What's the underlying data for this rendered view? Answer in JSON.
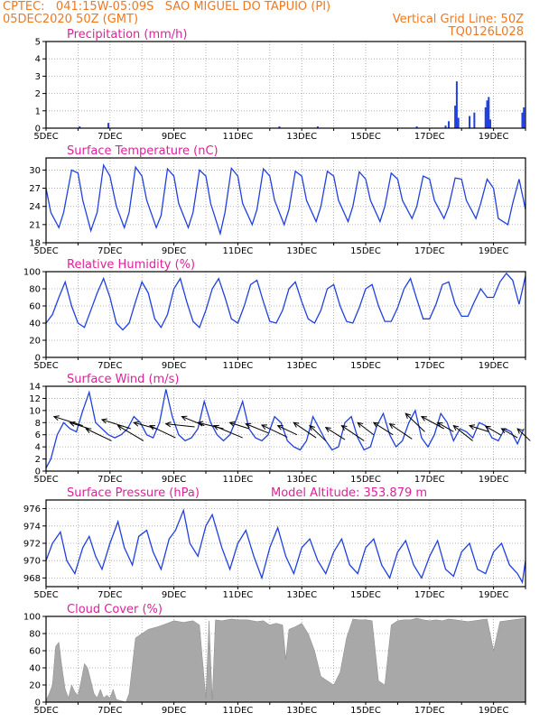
{
  "header": {
    "left_line1": "CPTEC:   041:15W-05:09S   SAO MIGUEL DO TAPUIO (PI)",
    "left_line2": "05DEC2020 50Z (GMT)",
    "right_line2": "Vertical Grid Line: 50Z",
    "right_line3": "TQ0126L028"
  },
  "colors": {
    "header": "#f07820",
    "title": "#e0209a",
    "line": "#2040e0",
    "cloud_fill": "#a8a8a8",
    "grid": "#a0a0a0"
  },
  "x_axis": {
    "days": [
      5,
      6,
      7,
      8,
      9,
      10,
      11,
      12,
      13,
      14,
      15,
      16,
      17,
      18,
      19,
      20
    ],
    "tick_labels": [
      "5DEC",
      "7DEC",
      "9DEC",
      "11DEC",
      "13DEC",
      "15DEC",
      "17DEC",
      "19DEC"
    ]
  },
  "chart_data": [
    {
      "type": "bar",
      "title": "Precipitation (mm/h)",
      "ylim": [
        0,
        5
      ],
      "yticks": [
        "0",
        "1",
        "2",
        "3",
        "4",
        "5"
      ],
      "x_unit": "day of December 2020",
      "x": [
        6.05,
        6.95,
        12.3,
        13.5,
        16.6,
        17.5,
        17.6,
        17.8,
        17.85,
        17.9,
        18.25,
        18.4,
        18.75,
        18.8,
        18.85,
        18.9,
        19.9,
        19.95
      ],
      "values": [
        0.1,
        0.3,
        0.1,
        0.1,
        0.1,
        0.15,
        0.4,
        1.3,
        2.7,
        0.6,
        0.7,
        0.9,
        1.2,
        1.6,
        1.8,
        0.5,
        0.9,
        1.2
      ]
    },
    {
      "type": "line",
      "title": "Surface Temperature (nC)",
      "ylim": [
        18,
        32
      ],
      "yticks": [
        "18",
        "21",
        "24",
        "27",
        "30"
      ],
      "x_unit": "day of December 2020",
      "x": [
        5.0,
        5.15,
        5.4,
        5.55,
        5.8,
        6.0,
        6.15,
        6.4,
        6.6,
        6.8,
        7.0,
        7.2,
        7.45,
        7.6,
        7.8,
        8.0,
        8.15,
        8.45,
        8.6,
        8.8,
        9.0,
        9.15,
        9.45,
        9.6,
        9.8,
        10.0,
        10.15,
        10.45,
        10.6,
        10.8,
        11.0,
        11.15,
        11.45,
        11.6,
        11.8,
        12.0,
        12.15,
        12.45,
        12.6,
        12.8,
        13.0,
        13.15,
        13.45,
        13.6,
        13.8,
        14.0,
        14.15,
        14.45,
        14.6,
        14.8,
        15.0,
        15.15,
        15.45,
        15.6,
        15.8,
        16.0,
        16.15,
        16.45,
        16.6,
        16.8,
        17.0,
        17.15,
        17.45,
        17.6,
        17.8,
        18.0,
        18.15,
        18.45,
        18.6,
        18.8,
        19.0,
        19.15,
        19.45,
        19.6,
        19.8,
        20.0
      ],
      "values": [
        27,
        23,
        20.5,
        23,
        30,
        29.5,
        25,
        20,
        23,
        30.8,
        29,
        24,
        20.5,
        23,
        30.5,
        29,
        25,
        20.5,
        22.5,
        30.2,
        29,
        24.5,
        20.5,
        23,
        30,
        29,
        24.5,
        19.5,
        23,
        30.3,
        29,
        24.5,
        21,
        23.5,
        30.2,
        29,
        25,
        21,
        23.5,
        29.8,
        29,
        25,
        21.5,
        24,
        29.8,
        29,
        25,
        21.5,
        24,
        29.7,
        28.5,
        25,
        21.5,
        24,
        29.5,
        28.5,
        25,
        22,
        24,
        29,
        28.5,
        25,
        22,
        24,
        28.7,
        28.5,
        25,
        22,
        24.5,
        28.5,
        27,
        22,
        21,
        24.5,
        28.5,
        23.5
      ]
    },
    {
      "type": "line",
      "title": "Relative Humidity (%)",
      "ylim": [
        0,
        100
      ],
      "yticks": [
        "0",
        "20",
        "40",
        "60",
        "80",
        "100"
      ],
      "x_unit": "day of December 2020",
      "x": [
        5.0,
        5.2,
        5.4,
        5.6,
        5.8,
        6.0,
        6.2,
        6.4,
        6.6,
        6.8,
        7.0,
        7.2,
        7.4,
        7.6,
        7.8,
        8.0,
        8.2,
        8.4,
        8.6,
        8.8,
        9.0,
        9.2,
        9.4,
        9.6,
        9.8,
        10.0,
        10.2,
        10.4,
        10.6,
        10.8,
        11.0,
        11.2,
        11.4,
        11.6,
        11.8,
        12.0,
        12.2,
        12.4,
        12.6,
        12.8,
        13.0,
        13.2,
        13.4,
        13.6,
        13.8,
        14.0,
        14.2,
        14.4,
        14.6,
        14.8,
        15.0,
        15.2,
        15.4,
        15.6,
        15.8,
        16.0,
        16.2,
        16.4,
        16.6,
        16.8,
        17.0,
        17.2,
        17.4,
        17.6,
        17.8,
        18.0,
        18.2,
        18.4,
        18.6,
        18.8,
        19.0,
        19.2,
        19.4,
        19.6,
        19.8,
        20.0
      ],
      "values": [
        40,
        50,
        70,
        88,
        60,
        40,
        35,
        55,
        75,
        92,
        70,
        40,
        32,
        40,
        65,
        88,
        75,
        45,
        35,
        50,
        80,
        92,
        65,
        42,
        35,
        55,
        80,
        92,
        70,
        45,
        40,
        60,
        85,
        90,
        65,
        42,
        40,
        55,
        80,
        88,
        65,
        45,
        40,
        55,
        80,
        85,
        60,
        42,
        40,
        58,
        80,
        85,
        60,
        42,
        42,
        58,
        80,
        92,
        68,
        45,
        45,
        62,
        85,
        88,
        62,
        48,
        48,
        65,
        80,
        70,
        70,
        88,
        98,
        90,
        62,
        95
      ]
    },
    {
      "type": "line",
      "title": "Surface Wind (m/s)",
      "ylim": [
        0,
        14
      ],
      "yticks": [
        "0",
        "2",
        "4",
        "6",
        "8",
        "10",
        "12",
        "14"
      ],
      "x_unit": "day of December 2020",
      "x": [
        5.0,
        5.15,
        5.35,
        5.55,
        5.75,
        5.95,
        6.15,
        6.35,
        6.55,
        6.75,
        6.95,
        7.15,
        7.35,
        7.55,
        7.75,
        7.95,
        8.15,
        8.35,
        8.55,
        8.75,
        8.95,
        9.15,
        9.35,
        9.55,
        9.75,
        9.95,
        10.15,
        10.35,
        10.55,
        10.75,
        10.95,
        11.15,
        11.35,
        11.55,
        11.75,
        11.95,
        12.15,
        12.35,
        12.55,
        12.75,
        12.95,
        13.15,
        13.35,
        13.55,
        13.75,
        13.95,
        14.15,
        14.35,
        14.55,
        14.75,
        14.95,
        15.15,
        15.35,
        15.55,
        15.75,
        15.95,
        16.15,
        16.35,
        16.55,
        16.75,
        16.95,
        17.15,
        17.35,
        17.55,
        17.75,
        17.95,
        18.15,
        18.35,
        18.55,
        18.75,
        18.95,
        19.15,
        19.35,
        19.55,
        19.75,
        19.95
      ],
      "values": [
        0.5,
        2,
        6,
        8,
        7,
        6.5,
        10,
        13,
        8,
        7,
        6,
        5.5,
        6,
        7,
        9,
        8,
        6,
        5.5,
        8,
        13.5,
        9,
        6,
        5,
        5.5,
        7,
        11.5,
        8,
        6,
        5,
        6,
        8.5,
        11.5,
        7,
        5.5,
        5,
        6,
        9,
        8,
        5,
        4,
        3.5,
        5,
        9,
        7,
        5,
        3.5,
        4,
        8,
        9,
        5.5,
        3.5,
        4,
        7.5,
        9.5,
        6,
        4,
        5,
        8,
        10,
        5.5,
        4,
        6,
        9.5,
        8,
        5,
        7,
        6.5,
        5.5,
        8,
        7.5,
        5.5,
        5,
        7,
        6.5,
        4.5,
        7
      ]
    },
    {
      "type": "line",
      "title": "Surface Pressure (hPa)",
      "annotation": "Model Altitude: 353.879 m",
      "ylim": [
        967,
        977
      ],
      "yticks": [
        "968",
        "970",
        "972",
        "974",
        "976"
      ],
      "x_unit": "day of December 2020",
      "x": [
        5.0,
        5.2,
        5.45,
        5.65,
        5.9,
        6.15,
        6.35,
        6.55,
        6.75,
        7.0,
        7.25,
        7.45,
        7.7,
        7.9,
        8.15,
        8.35,
        8.6,
        8.85,
        9.05,
        9.3,
        9.5,
        9.75,
        10.0,
        10.2,
        10.5,
        10.75,
        11.0,
        11.25,
        11.5,
        11.75,
        12.0,
        12.25,
        12.5,
        12.75,
        13.0,
        13.25,
        13.5,
        13.75,
        14.0,
        14.25,
        14.5,
        14.75,
        15.0,
        15.25,
        15.5,
        15.75,
        16.0,
        16.25,
        16.5,
        16.75,
        17.0,
        17.25,
        17.5,
        17.75,
        18.0,
        18.25,
        18.5,
        18.75,
        19.0,
        19.25,
        19.5,
        19.75,
        19.9,
        20.0
      ],
      "values": [
        970,
        972,
        973.3,
        970,
        968.5,
        971.5,
        972.8,
        970.5,
        969,
        972,
        974.5,
        971.5,
        969.5,
        972.8,
        973.5,
        971,
        969,
        972.5,
        973.5,
        975.8,
        972,
        970.5,
        974,
        975.3,
        971.5,
        969,
        972,
        973.5,
        970.5,
        968,
        971.5,
        973.8,
        970.5,
        968.5,
        971.5,
        972.5,
        970,
        968.5,
        971,
        972.5,
        969.5,
        968.5,
        971.5,
        972.5,
        969.5,
        968,
        971,
        972.3,
        969.5,
        968,
        970.5,
        972.3,
        969,
        968.2,
        971,
        972,
        969,
        968.5,
        971,
        972,
        969.5,
        968.5,
        967.5,
        970
      ]
    },
    {
      "type": "area",
      "title": "Cloud Cover (%)",
      "ylim": [
        0,
        100
      ],
      "yticks": [
        "0",
        "20",
        "40",
        "60",
        "80",
        "100"
      ],
      "x_unit": "day of December 2020",
      "x": [
        5.0,
        5.1,
        5.2,
        5.3,
        5.4,
        5.5,
        5.6,
        5.7,
        5.8,
        5.9,
        6.0,
        6.1,
        6.2,
        6.3,
        6.4,
        6.5,
        6.6,
        6.7,
        6.8,
        6.9,
        7.0,
        7.1,
        7.2,
        7.3,
        7.4,
        7.5,
        7.6,
        7.8,
        8.0,
        8.2,
        8.5,
        8.8,
        9.0,
        9.3,
        9.6,
        9.8,
        10.0,
        10.1,
        10.2,
        10.3,
        10.5,
        10.8,
        11.0,
        11.3,
        11.6,
        11.8,
        12.0,
        12.2,
        12.4,
        12.5,
        12.6,
        12.8,
        13.0,
        13.2,
        13.4,
        13.6,
        13.8,
        14.0,
        14.2,
        14.4,
        14.6,
        14.8,
        15.0,
        15.2,
        15.4,
        15.6,
        15.8,
        16.0,
        16.2,
        16.4,
        16.6,
        16.8,
        17.0,
        17.2,
        17.4,
        17.6,
        17.8,
        18.0,
        18.2,
        18.4,
        18.6,
        18.8,
        19.0,
        19.2,
        19.4,
        19.6,
        19.8,
        20.0
      ],
      "values": [
        2,
        10,
        20,
        65,
        70,
        40,
        15,
        5,
        20,
        12,
        8,
        25,
        45,
        40,
        25,
        10,
        5,
        15,
        5,
        8,
        5,
        15,
        3,
        2,
        1,
        0,
        10,
        75,
        80,
        85,
        88,
        92,
        95,
        93,
        95,
        90,
        5,
        95,
        3,
        96,
        95,
        97,
        96,
        96,
        94,
        95,
        90,
        92,
        90,
        50,
        85,
        88,
        92,
        80,
        60,
        30,
        25,
        20,
        35,
        75,
        97,
        96,
        96,
        95,
        25,
        20,
        90,
        95,
        96,
        96,
        98,
        96,
        95,
        96,
        95,
        97,
        96,
        95,
        94,
        95,
        96,
        97,
        60,
        94,
        95,
        96,
        97,
        98
      ]
    }
  ],
  "wind_barbs": {
    "x": [
      5.25,
      5.75,
      6.25,
      6.75,
      7.25,
      7.75,
      8.25,
      8.75,
      9.25,
      9.75,
      10.25,
      10.75,
      11.25,
      11.75,
      12.25,
      12.75,
      13.25,
      13.75,
      14.25,
      14.75,
      15.25,
      15.75,
      16.25,
      16.75,
      17.25,
      17.75,
      18.25,
      18.75,
      19.25,
      19.75
    ],
    "base_values": [
      9,
      8,
      7,
      8.5,
      7.5,
      8,
      7.5,
      7.8,
      9,
      8,
      7.5,
      8,
      7.8,
      7.6,
      7.5,
      8,
      7.5,
      7.2,
      7.5,
      8,
      8,
      7.8,
      9.5,
      9,
      8,
      7.5,
      7.5,
      7.4,
      7,
      7
    ],
    "dx_days": [
      0.9,
      0.6,
      0.8,
      0.9,
      0.8,
      0.7,
      0.8,
      0.9,
      0.7,
      0.8,
      0.9,
      0.6,
      0.7,
      0.8,
      0.6,
      0.7,
      0.5,
      0.6,
      0.7,
      0.5,
      0.6,
      0.7,
      0.6,
      0.7,
      0.5,
      0.6,
      0.6,
      0.5,
      0.5,
      0.4
    ],
    "dy_values": [
      -1.5,
      -1,
      -2,
      -1.5,
      -2.5,
      -1,
      -2,
      -0.5,
      -1.5,
      -1,
      -2,
      -1,
      -1.5,
      -2,
      -1.5,
      -2.5,
      -2.5,
      -2,
      -2.5,
      -2,
      -2,
      -2.5,
      -3,
      -2,
      -1.5,
      -2.5,
      -1,
      -1.5,
      -1.5,
      -2
    ]
  }
}
